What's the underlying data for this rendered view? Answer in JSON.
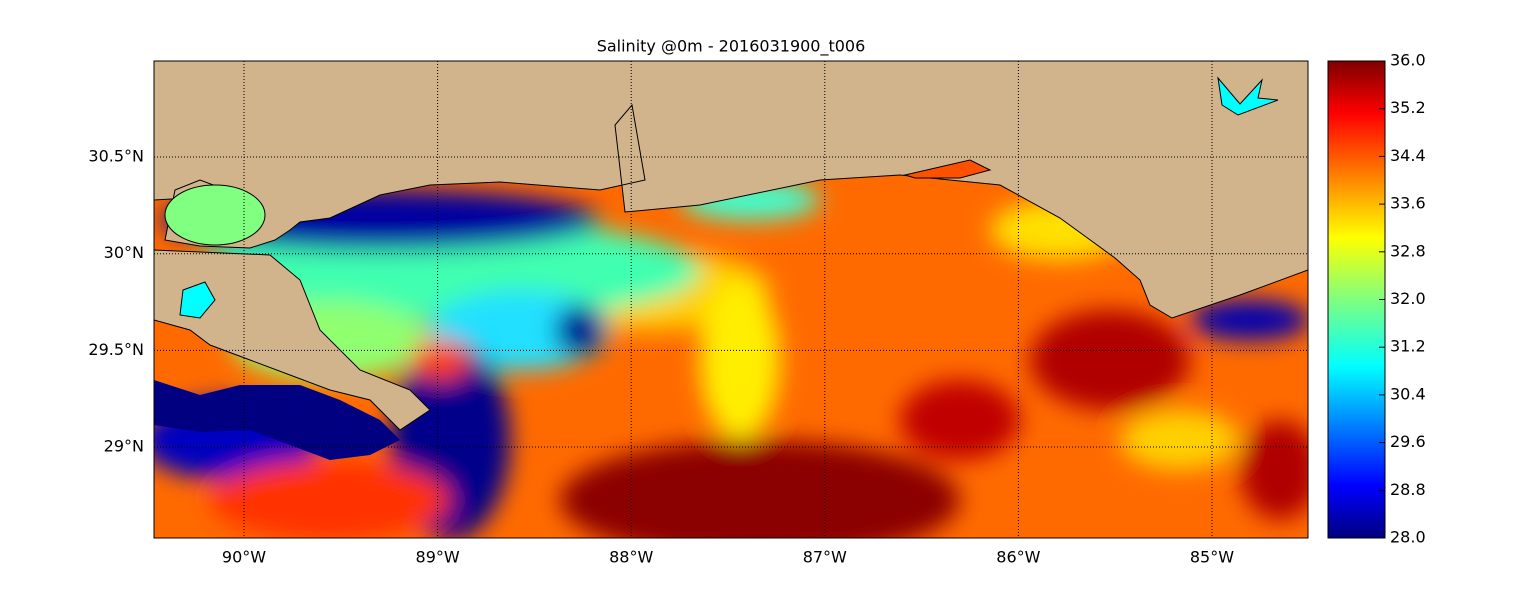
{
  "chart_data": {
    "type": "map",
    "title": "Salinity @0m - 2016031900_t006",
    "xlim": [
      -90.465,
      -84.504
    ],
    "ylim": [
      28.529,
      30.997
    ],
    "xticks": [
      {
        "value": -90,
        "label": "90°W"
      },
      {
        "value": -89,
        "label": "89°W"
      },
      {
        "value": -88,
        "label": "88°W"
      },
      {
        "value": -87,
        "label": "87°W"
      },
      {
        "value": -86,
        "label": "86°W"
      },
      {
        "value": -85,
        "label": "85°W"
      }
    ],
    "yticks": [
      {
        "value": 29,
        "label": "29°N"
      },
      {
        "value": 29.5,
        "label": "29.5°N"
      },
      {
        "value": 30,
        "label": "30°N"
      },
      {
        "value": 30.5,
        "label": "30.5°N"
      }
    ],
    "grid": true,
    "colormap": "jet",
    "clim": [
      28,
      36
    ],
    "cticks": [
      {
        "value": 28,
        "label": "28.0"
      },
      28.8,
      29.6,
      30.4,
      31.2,
      {
        "value": 32,
        "label": "32.0"
      },
      32.8,
      33.6,
      34.4,
      35.2,
      {
        "value": 36,
        "label": "36.0"
      }
    ]
  }
}
